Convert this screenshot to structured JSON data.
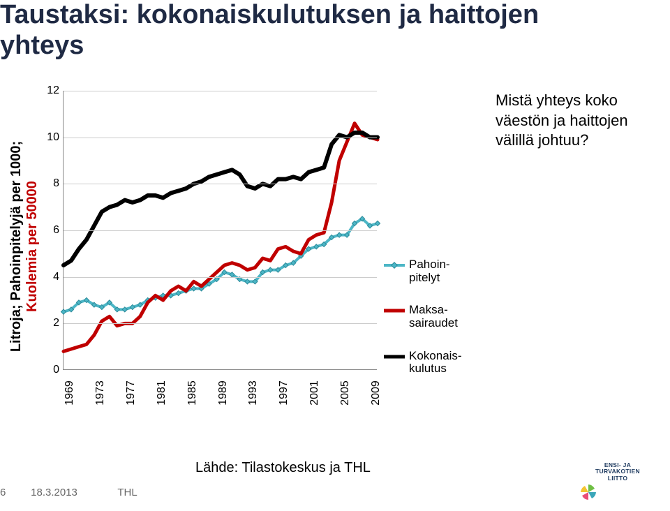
{
  "title": "Taustaksi: kokonaiskulutuksen ja haittojen yhteys",
  "side_text": "Mistä yhteys koko väestön ja haittojen välillä johtuu?",
  "source": "Lähde: Tilastokeskus ja THL",
  "footer": {
    "page": "6",
    "date": "18.3.2013",
    "org": "THL"
  },
  "logo": {
    "line1": "ENSI- JA",
    "line2": "TURVAKOTIEN",
    "line3": "LIITTO"
  },
  "chart": {
    "type": "line",
    "y_label_line1": "Litroja; Pahoinpitelyjä per 1000;",
    "y_label_line2": "Kuolemia per 50000",
    "y_label_line2_color": "#c00000",
    "x_years": [
      1969,
      1970,
      1971,
      1972,
      1973,
      1974,
      1975,
      1976,
      1977,
      1978,
      1979,
      1980,
      1981,
      1982,
      1983,
      1984,
      1985,
      1986,
      1987,
      1988,
      1989,
      1990,
      1991,
      1992,
      1993,
      1994,
      1995,
      1996,
      1997,
      1998,
      1999,
      2000,
      2001,
      2002,
      2003,
      2004,
      2005,
      2006,
      2007,
      2008,
      2009,
      2010
    ],
    "x_tick_labels": [
      "1969",
      "1973",
      "1977",
      "1981",
      "1985",
      "1989",
      "1993",
      "1997",
      "2001",
      "2005",
      "2009"
    ],
    "x_tick_positions": [
      1969,
      1973,
      1977,
      1981,
      1985,
      1989,
      1993,
      1997,
      2001,
      2005,
      2009
    ],
    "ylim": [
      0,
      12
    ],
    "ytick_step": 2,
    "grid_color": "#cccccc",
    "axis_color": "#888888",
    "background_color": "#ffffff",
    "series": [
      {
        "name": "Pahoinpitelyt",
        "legend": "Pahoin-\npitelyt",
        "color": "#4cb6c6",
        "line_width": 4,
        "marker": "diamond",
        "marker_size": 5,
        "marker_border": "#2b8a99",
        "values": [
          2.5,
          2.6,
          2.9,
          3.0,
          2.8,
          2.7,
          2.9,
          2.6,
          2.6,
          2.7,
          2.8,
          3.0,
          3.1,
          3.2,
          3.2,
          3.3,
          3.4,
          3.5,
          3.5,
          3.7,
          3.9,
          4.2,
          4.1,
          3.9,
          3.8,
          3.8,
          4.2,
          4.3,
          4.3,
          4.5,
          4.6,
          4.9,
          5.2,
          5.3,
          5.4,
          5.7,
          5.8,
          5.8,
          6.3,
          6.5,
          6.2,
          6.3
        ]
      },
      {
        "name": "Maksasairaudet",
        "legend": "Maksa-\nsairaudet",
        "color": "#c00000",
        "line_width": 5,
        "marker": null,
        "values": [
          0.8,
          0.9,
          1.0,
          1.1,
          1.5,
          2.1,
          2.3,
          1.9,
          2.0,
          2.0,
          2.3,
          2.9,
          3.2,
          3.0,
          3.4,
          3.6,
          3.4,
          3.8,
          3.6,
          3.9,
          4.2,
          4.5,
          4.6,
          4.5,
          4.3,
          4.4,
          4.8,
          4.7,
          5.2,
          5.3,
          5.1,
          5.0,
          5.6,
          5.8,
          5.9,
          7.2,
          9.0,
          9.8,
          10.6,
          10.1,
          10.0,
          9.9
        ]
      },
      {
        "name": "Kokonaiskulutus",
        "legend": "Kokonais-\nkulutus",
        "color": "#000000",
        "line_width": 6,
        "marker": null,
        "values": [
          4.5,
          4.7,
          5.2,
          5.6,
          6.2,
          6.8,
          7.0,
          7.1,
          7.3,
          7.2,
          7.3,
          7.5,
          7.5,
          7.4,
          7.6,
          7.7,
          7.8,
          8.0,
          8.1,
          8.3,
          8.4,
          8.5,
          8.6,
          8.4,
          7.9,
          7.8,
          8.0,
          7.9,
          8.2,
          8.2,
          8.3,
          8.2,
          8.5,
          8.6,
          8.7,
          9.7,
          10.1,
          10.0,
          10.2,
          10.2,
          10.0,
          10.0
        ]
      }
    ]
  },
  "colors": {
    "title": "#1f2a44",
    "footer": "#666666"
  }
}
